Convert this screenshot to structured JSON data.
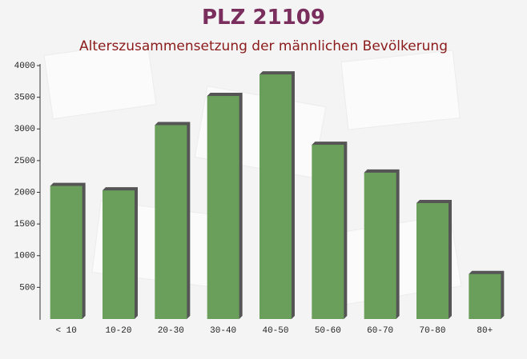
{
  "chart_data": {
    "type": "bar",
    "title": "PLZ 21109",
    "subtitle": "Alterszusammensetzung der männlichen Bevölkerung",
    "categories": [
      "< 10",
      "10-20",
      "20-30",
      "30-40",
      "40-50",
      "50-60",
      "60-70",
      "70-80",
      "80+"
    ],
    "values": [
      2100,
      2030,
      3060,
      3520,
      3860,
      2750,
      2310,
      1830,
      710
    ],
    "color": "#6a9f5b",
    "ylim": [
      0,
      4000
    ],
    "yticks": [
      500,
      1000,
      1500,
      2000,
      2500,
      3000,
      3500,
      4000
    ]
  }
}
